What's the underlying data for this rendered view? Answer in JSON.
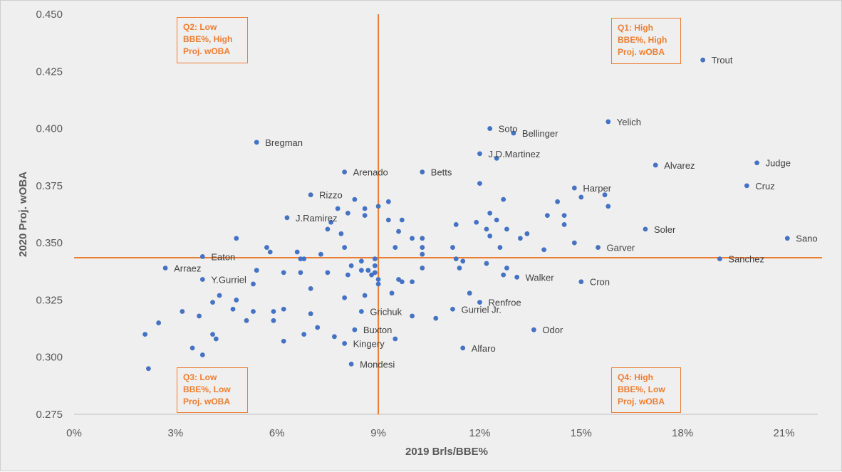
{
  "chart_data": {
    "type": "scatter",
    "xlabel": "2019 Brls/BBE%",
    "ylabel": "2020 Proj. wOBA",
    "xlim": [
      0,
      0.22
    ],
    "ylim": [
      0.275,
      0.45
    ],
    "x_ticks": [
      "0%",
      "3%",
      "6%",
      "9%",
      "12%",
      "15%",
      "18%",
      "21%"
    ],
    "y_ticks": [
      "0.275",
      "0.300",
      "0.325",
      "0.350",
      "0.375",
      "0.400",
      "0.425",
      "0.450"
    ],
    "grid": false,
    "reference_lines": {
      "x": 0.09,
      "y": 0.3435
    },
    "quadrants": [
      {
        "id": "q1",
        "text": "Q1: High\nBBE%, High\nProj. wOBA"
      },
      {
        "id": "q2",
        "text": "Q2: Low\nBBE%, High\nProj. wOBA"
      },
      {
        "id": "q3",
        "text": "Q3: Low\nBBE%, Low\nProj. wOBA"
      },
      {
        "id": "q4",
        "text": "Q4: High\nBBE%, Low\nProj. wOBA"
      }
    ],
    "colors": {
      "points": "#4472c4",
      "reference": "#ed7d31",
      "background": "#efefef"
    },
    "labeled_points": [
      {
        "label": "Trout",
        "x": 0.186,
        "y": 0.43
      },
      {
        "label": "Yelich",
        "x": 0.158,
        "y": 0.403
      },
      {
        "label": "Soto",
        "x": 0.123,
        "y": 0.4
      },
      {
        "label": "Bellinger",
        "x": 0.13,
        "y": 0.398
      },
      {
        "label": "Bregman",
        "x": 0.054,
        "y": 0.394
      },
      {
        "label": "J.D.Martinez",
        "x": 0.12,
        "y": 0.389
      },
      {
        "label": "Judge",
        "x": 0.202,
        "y": 0.385
      },
      {
        "label": "Alvarez",
        "x": 0.172,
        "y": 0.384
      },
      {
        "label": "Arenado",
        "x": 0.08,
        "y": 0.381
      },
      {
        "label": "Betts",
        "x": 0.103,
        "y": 0.381
      },
      {
        "label": "Cruz",
        "x": 0.199,
        "y": 0.375
      },
      {
        "label": "Harper",
        "x": 0.148,
        "y": 0.374
      },
      {
        "label": "Rizzo",
        "x": 0.07,
        "y": 0.371
      },
      {
        "label": "J.Ramirez",
        "x": 0.063,
        "y": 0.361
      },
      {
        "label": "Soler",
        "x": 0.169,
        "y": 0.356
      },
      {
        "label": "Sano",
        "x": 0.211,
        "y": 0.352
      },
      {
        "label": "Garver",
        "x": 0.155,
        "y": 0.348
      },
      {
        "label": "Eaton",
        "x": 0.038,
        "y": 0.344
      },
      {
        "label": "Sanchez",
        "x": 0.191,
        "y": 0.343
      },
      {
        "label": "Arraez",
        "x": 0.027,
        "y": 0.339
      },
      {
        "label": "Walker",
        "x": 0.131,
        "y": 0.335
      },
      {
        "label": "Y.Gurriel",
        "x": 0.038,
        "y": 0.334
      },
      {
        "label": "Cron",
        "x": 0.15,
        "y": 0.333
      },
      {
        "label": "Renfroe",
        "x": 0.12,
        "y": 0.324
      },
      {
        "label": "Gurriel Jr.",
        "x": 0.112,
        "y": 0.321
      },
      {
        "label": "Grichuk",
        "x": 0.085,
        "y": 0.32
      },
      {
        "label": "Odor",
        "x": 0.136,
        "y": 0.312
      },
      {
        "label": "Buxton",
        "x": 0.083,
        "y": 0.312
      },
      {
        "label": "Kingery",
        "x": 0.08,
        "y": 0.306
      },
      {
        "label": "Alfaro",
        "x": 0.115,
        "y": 0.304
      },
      {
        "label": "Mondesi",
        "x": 0.082,
        "y": 0.297
      }
    ],
    "unlabeled_points": [
      [
        0.021,
        0.31
      ],
      [
        0.022,
        0.295
      ],
      [
        0.025,
        0.315
      ],
      [
        0.032,
        0.32
      ],
      [
        0.035,
        0.304
      ],
      [
        0.037,
        0.318
      ],
      [
        0.038,
        0.301
      ],
      [
        0.041,
        0.31
      ],
      [
        0.041,
        0.324
      ],
      [
        0.042,
        0.308
      ],
      [
        0.043,
        0.327
      ],
      [
        0.047,
        0.321
      ],
      [
        0.048,
        0.352
      ],
      [
        0.048,
        0.325
      ],
      [
        0.051,
        0.316
      ],
      [
        0.053,
        0.32
      ],
      [
        0.053,
        0.332
      ],
      [
        0.054,
        0.338
      ],
      [
        0.057,
        0.348
      ],
      [
        0.058,
        0.346
      ],
      [
        0.059,
        0.32
      ],
      [
        0.059,
        0.316
      ],
      [
        0.062,
        0.337
      ],
      [
        0.062,
        0.321
      ],
      [
        0.062,
        0.307
      ],
      [
        0.066,
        0.346
      ],
      [
        0.067,
        0.343
      ],
      [
        0.067,
        0.337
      ],
      [
        0.068,
        0.343
      ],
      [
        0.068,
        0.31
      ],
      [
        0.07,
        0.33
      ],
      [
        0.07,
        0.319
      ],
      [
        0.072,
        0.313
      ],
      [
        0.073,
        0.345
      ],
      [
        0.075,
        0.356
      ],
      [
        0.075,
        0.337
      ],
      [
        0.076,
        0.359
      ],
      [
        0.077,
        0.309
      ],
      [
        0.078,
        0.365
      ],
      [
        0.079,
        0.354
      ],
      [
        0.08,
        0.348
      ],
      [
        0.08,
        0.326
      ],
      [
        0.081,
        0.363
      ],
      [
        0.081,
        0.336
      ],
      [
        0.082,
        0.34
      ],
      [
        0.083,
        0.369
      ],
      [
        0.085,
        0.342
      ],
      [
        0.085,
        0.338
      ],
      [
        0.086,
        0.365
      ],
      [
        0.086,
        0.362
      ],
      [
        0.086,
        0.327
      ],
      [
        0.087,
        0.338
      ],
      [
        0.088,
        0.336
      ],
      [
        0.089,
        0.343
      ],
      [
        0.089,
        0.34
      ],
      [
        0.089,
        0.337
      ],
      [
        0.09,
        0.366
      ],
      [
        0.09,
        0.334
      ],
      [
        0.09,
        0.332
      ],
      [
        0.093,
        0.368
      ],
      [
        0.093,
        0.36
      ],
      [
        0.094,
        0.328
      ],
      [
        0.095,
        0.348
      ],
      [
        0.095,
        0.308
      ],
      [
        0.096,
        0.355
      ],
      [
        0.096,
        0.334
      ],
      [
        0.097,
        0.36
      ],
      [
        0.097,
        0.333
      ],
      [
        0.1,
        0.352
      ],
      [
        0.1,
        0.333
      ],
      [
        0.1,
        0.318
      ],
      [
        0.103,
        0.352
      ],
      [
        0.103,
        0.348
      ],
      [
        0.103,
        0.345
      ],
      [
        0.103,
        0.339
      ],
      [
        0.107,
        0.317
      ],
      [
        0.112,
        0.348
      ],
      [
        0.113,
        0.358
      ],
      [
        0.113,
        0.343
      ],
      [
        0.114,
        0.339
      ],
      [
        0.115,
        0.342
      ],
      [
        0.117,
        0.328
      ],
      [
        0.119,
        0.359
      ],
      [
        0.12,
        0.376
      ],
      [
        0.122,
        0.356
      ],
      [
        0.122,
        0.341
      ],
      [
        0.123,
        0.363
      ],
      [
        0.123,
        0.353
      ],
      [
        0.125,
        0.36
      ],
      [
        0.125,
        0.387
      ],
      [
        0.126,
        0.348
      ],
      [
        0.127,
        0.369
      ],
      [
        0.127,
        0.336
      ],
      [
        0.128,
        0.356
      ],
      [
        0.128,
        0.339
      ],
      [
        0.132,
        0.352
      ],
      [
        0.134,
        0.354
      ],
      [
        0.139,
        0.347
      ],
      [
        0.14,
        0.362
      ],
      [
        0.143,
        0.368
      ],
      [
        0.145,
        0.362
      ],
      [
        0.145,
        0.358
      ],
      [
        0.148,
        0.35
      ],
      [
        0.15,
        0.37
      ],
      [
        0.157,
        0.371
      ],
      [
        0.158,
        0.366
      ]
    ]
  }
}
